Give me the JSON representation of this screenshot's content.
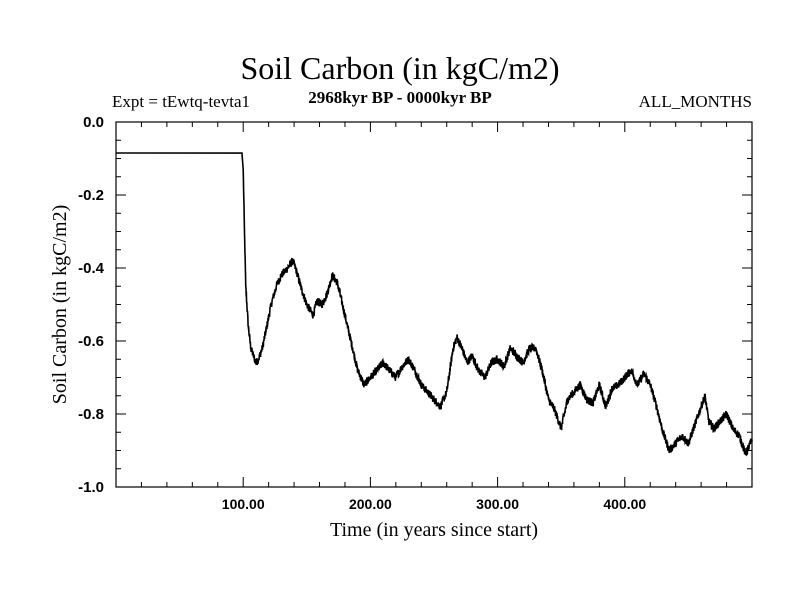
{
  "chart_data": {
    "type": "line",
    "title": "Soil Carbon (in kgC/m2)",
    "subtitle_left": "Expt = tEwtq-tevta1",
    "subtitle_center": "2968kyr BP - 0000kyr BP",
    "subtitle_right": "ALL_MONTHS",
    "xlabel": "Time (in years since start)",
    "ylabel": "Soil Carbon (in kgC/m2)",
    "xlim": [
      0,
      500
    ],
    "ylim": [
      -1.0,
      0.0
    ],
    "x_ticks": [
      100,
      200,
      300,
      400
    ],
    "x_tick_labels": [
      "100.00",
      "200.00",
      "300.00",
      "400.00"
    ],
    "y_ticks": [
      0.0,
      -0.2,
      -0.4,
      -0.6,
      -0.8,
      -1.0
    ],
    "y_tick_labels": [
      "0.0",
      "-0.2",
      "-0.4",
      "-0.6",
      "-0.8",
      "-1.0"
    ],
    "series": [
      {
        "name": "Soil Carbon",
        "color": "#000000",
        "x": [
          0,
          99,
          100,
          101,
          102,
          104,
          106,
          108,
          110,
          112,
          115,
          118,
          122,
          126,
          130,
          135,
          139,
          142,
          146,
          150,
          155,
          158,
          162,
          166,
          170,
          174,
          178,
          182,
          186,
          190,
          195,
          200,
          205,
          210,
          215,
          220,
          225,
          230,
          235,
          240,
          245,
          250,
          255,
          260,
          265,
          268,
          272,
          276,
          280,
          285,
          290,
          295,
          300,
          305,
          310,
          315,
          320,
          325,
          330,
          335,
          340,
          345,
          350,
          355,
          360,
          365,
          370,
          375,
          380,
          385,
          390,
          395,
          400,
          405,
          410,
          415,
          420,
          425,
          430,
          435,
          440,
          445,
          450,
          455,
          460,
          463,
          466,
          470,
          475,
          480,
          485,
          490,
          495,
          500
        ],
        "y": [
          -0.085,
          -0.085,
          -0.13,
          -0.3,
          -0.45,
          -0.56,
          -0.62,
          -0.64,
          -0.66,
          -0.65,
          -0.62,
          -0.57,
          -0.5,
          -0.45,
          -0.42,
          -0.4,
          -0.38,
          -0.41,
          -0.46,
          -0.5,
          -0.53,
          -0.49,
          -0.5,
          -0.47,
          -0.42,
          -0.44,
          -0.5,
          -0.56,
          -0.62,
          -0.68,
          -0.72,
          -0.7,
          -0.68,
          -0.66,
          -0.68,
          -0.7,
          -0.67,
          -0.65,
          -0.68,
          -0.72,
          -0.74,
          -0.76,
          -0.78,
          -0.74,
          -0.62,
          -0.59,
          -0.62,
          -0.66,
          -0.64,
          -0.68,
          -0.7,
          -0.66,
          -0.65,
          -0.67,
          -0.62,
          -0.64,
          -0.66,
          -0.62,
          -0.62,
          -0.68,
          -0.76,
          -0.79,
          -0.84,
          -0.76,
          -0.74,
          -0.72,
          -0.76,
          -0.77,
          -0.72,
          -0.78,
          -0.73,
          -0.72,
          -0.7,
          -0.68,
          -0.72,
          -0.69,
          -0.72,
          -0.78,
          -0.85,
          -0.9,
          -0.88,
          -0.86,
          -0.88,
          -0.83,
          -0.78,
          -0.75,
          -0.82,
          -0.84,
          -0.82,
          -0.8,
          -0.84,
          -0.86,
          -0.91,
          -0.87
        ]
      }
    ]
  }
}
